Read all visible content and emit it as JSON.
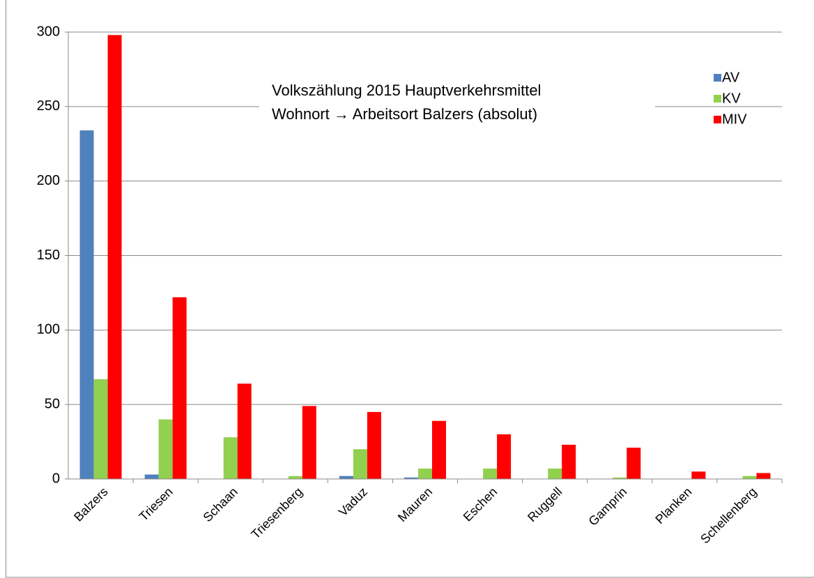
{
  "chart_data": {
    "type": "bar",
    "title": [
      "Volkszählung 2015  Hauptverkehrsmittel",
      "Wohnort → Arbeitsort Balzers (absolut)"
    ],
    "categories": [
      "Balzers",
      "Triesen",
      "Schaan",
      "Triesenberg",
      "Vaduz",
      "Mauren",
      "Eschen",
      "Ruggell",
      "Gamprin",
      "Planken",
      "Schellenberg"
    ],
    "series": [
      {
        "name": "AV",
        "color": "#4f81bd",
        "values": [
          234,
          3,
          0,
          0,
          2,
          1,
          0,
          0,
          0,
          0,
          0
        ]
      },
      {
        "name": "KV",
        "color": "#92d050",
        "values": [
          67,
          40,
          28,
          2,
          20,
          7,
          7,
          7,
          1,
          0,
          2
        ]
      },
      {
        "name": "MIV",
        "color": "#ff0000",
        "values": [
          298,
          122,
          64,
          49,
          45,
          39,
          30,
          23,
          21,
          5,
          4
        ]
      }
    ],
    "ylim": [
      0,
      300
    ],
    "yticks": [
      0,
      50,
      100,
      150,
      200,
      250,
      300
    ],
    "grid": true,
    "legend": "top-right"
  }
}
